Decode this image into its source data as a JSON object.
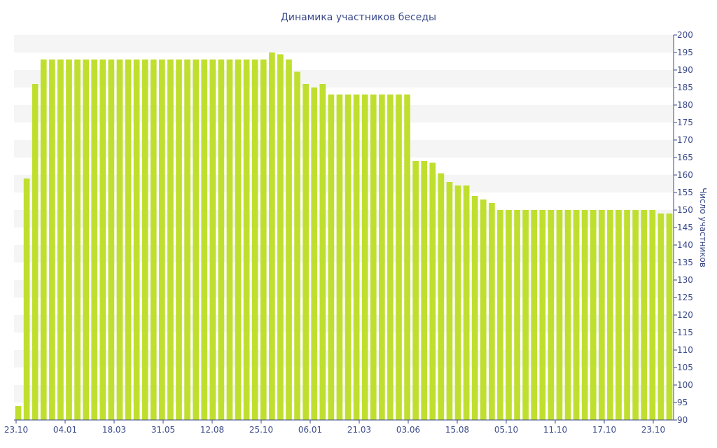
{
  "chart_data": {
    "type": "bar",
    "title": "Динамика участников беседы",
    "xlabel": "",
    "ylabel": "Число участников",
    "ylim": [
      90,
      200
    ],
    "ytick_step": 5,
    "y_axis_side": "right",
    "grid": "alternating horizontal bands",
    "legend": "none",
    "bar_color": "#bfdf2f",
    "band_color": "#f5f5f5",
    "text_color": "#3a4a8a",
    "x_tick_labels": [
      "23.10",
      "04.01",
      "18.03",
      "31.05",
      "12.08",
      "25.10",
      "06.01",
      "21.03",
      "03.06",
      "15.08",
      "05.10",
      "11.10",
      "17.10",
      "23.10"
    ],
    "values": [
      94,
      159,
      186,
      193,
      193,
      193,
      193,
      193,
      193,
      193,
      193,
      193,
      193,
      193,
      193,
      193,
      193,
      193,
      193,
      193,
      193,
      193,
      193,
      193,
      193,
      193,
      193,
      193,
      193,
      193,
      195,
      194.5,
      193,
      189.5,
      186,
      185,
      186,
      183,
      183,
      183,
      183,
      183,
      183,
      183,
      183,
      183,
      183,
      164,
      164,
      163.5,
      160.5,
      158,
      157,
      157,
      154,
      153,
      152,
      150,
      150,
      150,
      150,
      150,
      150,
      150,
      150,
      150,
      150,
      150,
      150,
      150,
      150,
      150,
      150,
      150,
      150,
      150,
      149,
      149
    ]
  }
}
